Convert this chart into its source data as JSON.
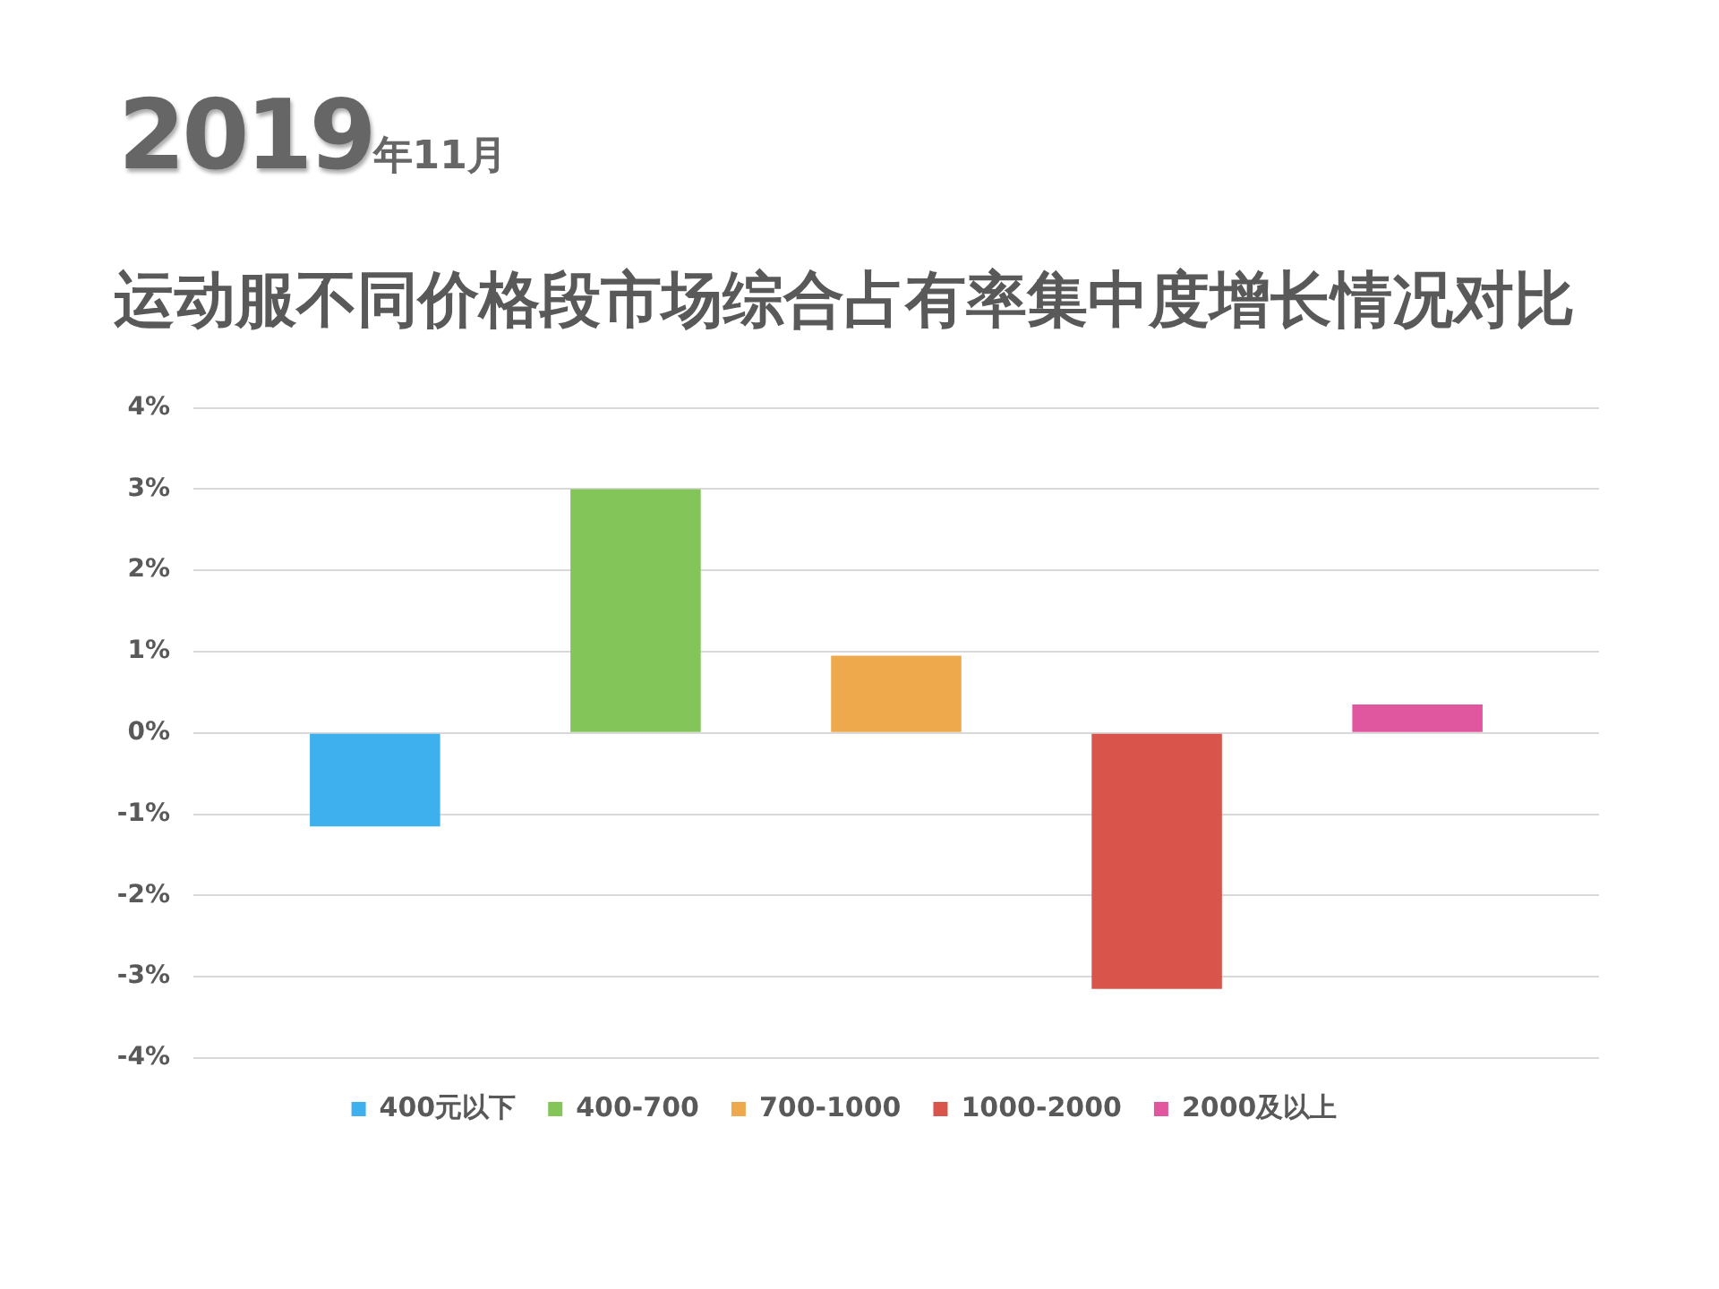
{
  "chart_data": {
    "type": "bar",
    "title": "运动服不同价格段市场综合占有率集中度增长情况对比",
    "annotations": [
      "2019年11月"
    ],
    "categories": [
      null
    ],
    "series": [
      {
        "name": "400元以下",
        "color": "#3fb0ee",
        "values": [
          -1.15
        ]
      },
      {
        "name": "400-700",
        "color": "#84c55a",
        "values": [
          3.0
        ]
      },
      {
        "name": "700-1000",
        "color": "#eda94c",
        "values": [
          0.95
        ]
      },
      {
        "name": "1000-2000",
        "color": "#d9544a",
        "values": [
          -3.15
        ]
      },
      {
        "name": "2000及以上",
        "color": "#e0579f",
        "values": [
          0.35
        ]
      }
    ],
    "ylim": [
      -4,
      4
    ],
    "yticks": [
      {
        "value": 4,
        "label": "4%"
      },
      {
        "value": 3,
        "label": "3%"
      },
      {
        "value": 2,
        "label": "2%"
      },
      {
        "value": 1,
        "label": "1%"
      },
      {
        "value": 0,
        "label": "0%"
      },
      {
        "value": -1,
        "label": "-1%"
      },
      {
        "value": -2,
        "label": "-2%"
      },
      {
        "value": -3,
        "label": "-3%"
      },
      {
        "value": -4,
        "label": "-4%"
      }
    ],
    "grid": "y",
    "legend": "bottom",
    "tick_labels": "y"
  }
}
